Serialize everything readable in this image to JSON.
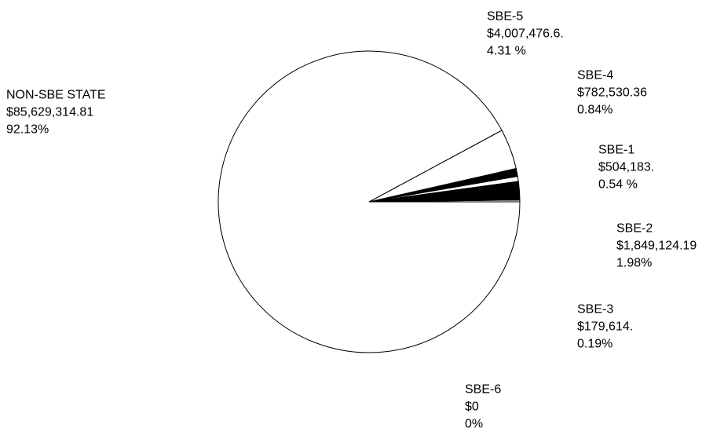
{
  "chart_data": {
    "type": "pie",
    "categories": [
      "SBE-3",
      "SBE-2",
      "SBE-1",
      "SBE-4",
      "SBE-5",
      "NON-SBE STATE",
      "SBE-6"
    ],
    "amount_labels": [
      "$179,614.",
      "$1,849,124.19",
      "$504,183.",
      "$782,530.36",
      "$4,007,476.6.",
      "$85,629,314.81",
      "$0"
    ],
    "values": [
      0.19,
      1.98,
      0.54,
      0.84,
      4.31,
      92.13,
      0
    ],
    "value_labels": [
      "0.19%",
      "1.98%",
      "0.54 %",
      "0.84%",
      "4.31 %",
      "92.13%",
      "0%"
    ],
    "colors": [
      "#ffffff",
      "#000000",
      "#ffffff",
      "#000000",
      "#ffffff",
      "#ffffff",
      "#ffffff"
    ]
  }
}
